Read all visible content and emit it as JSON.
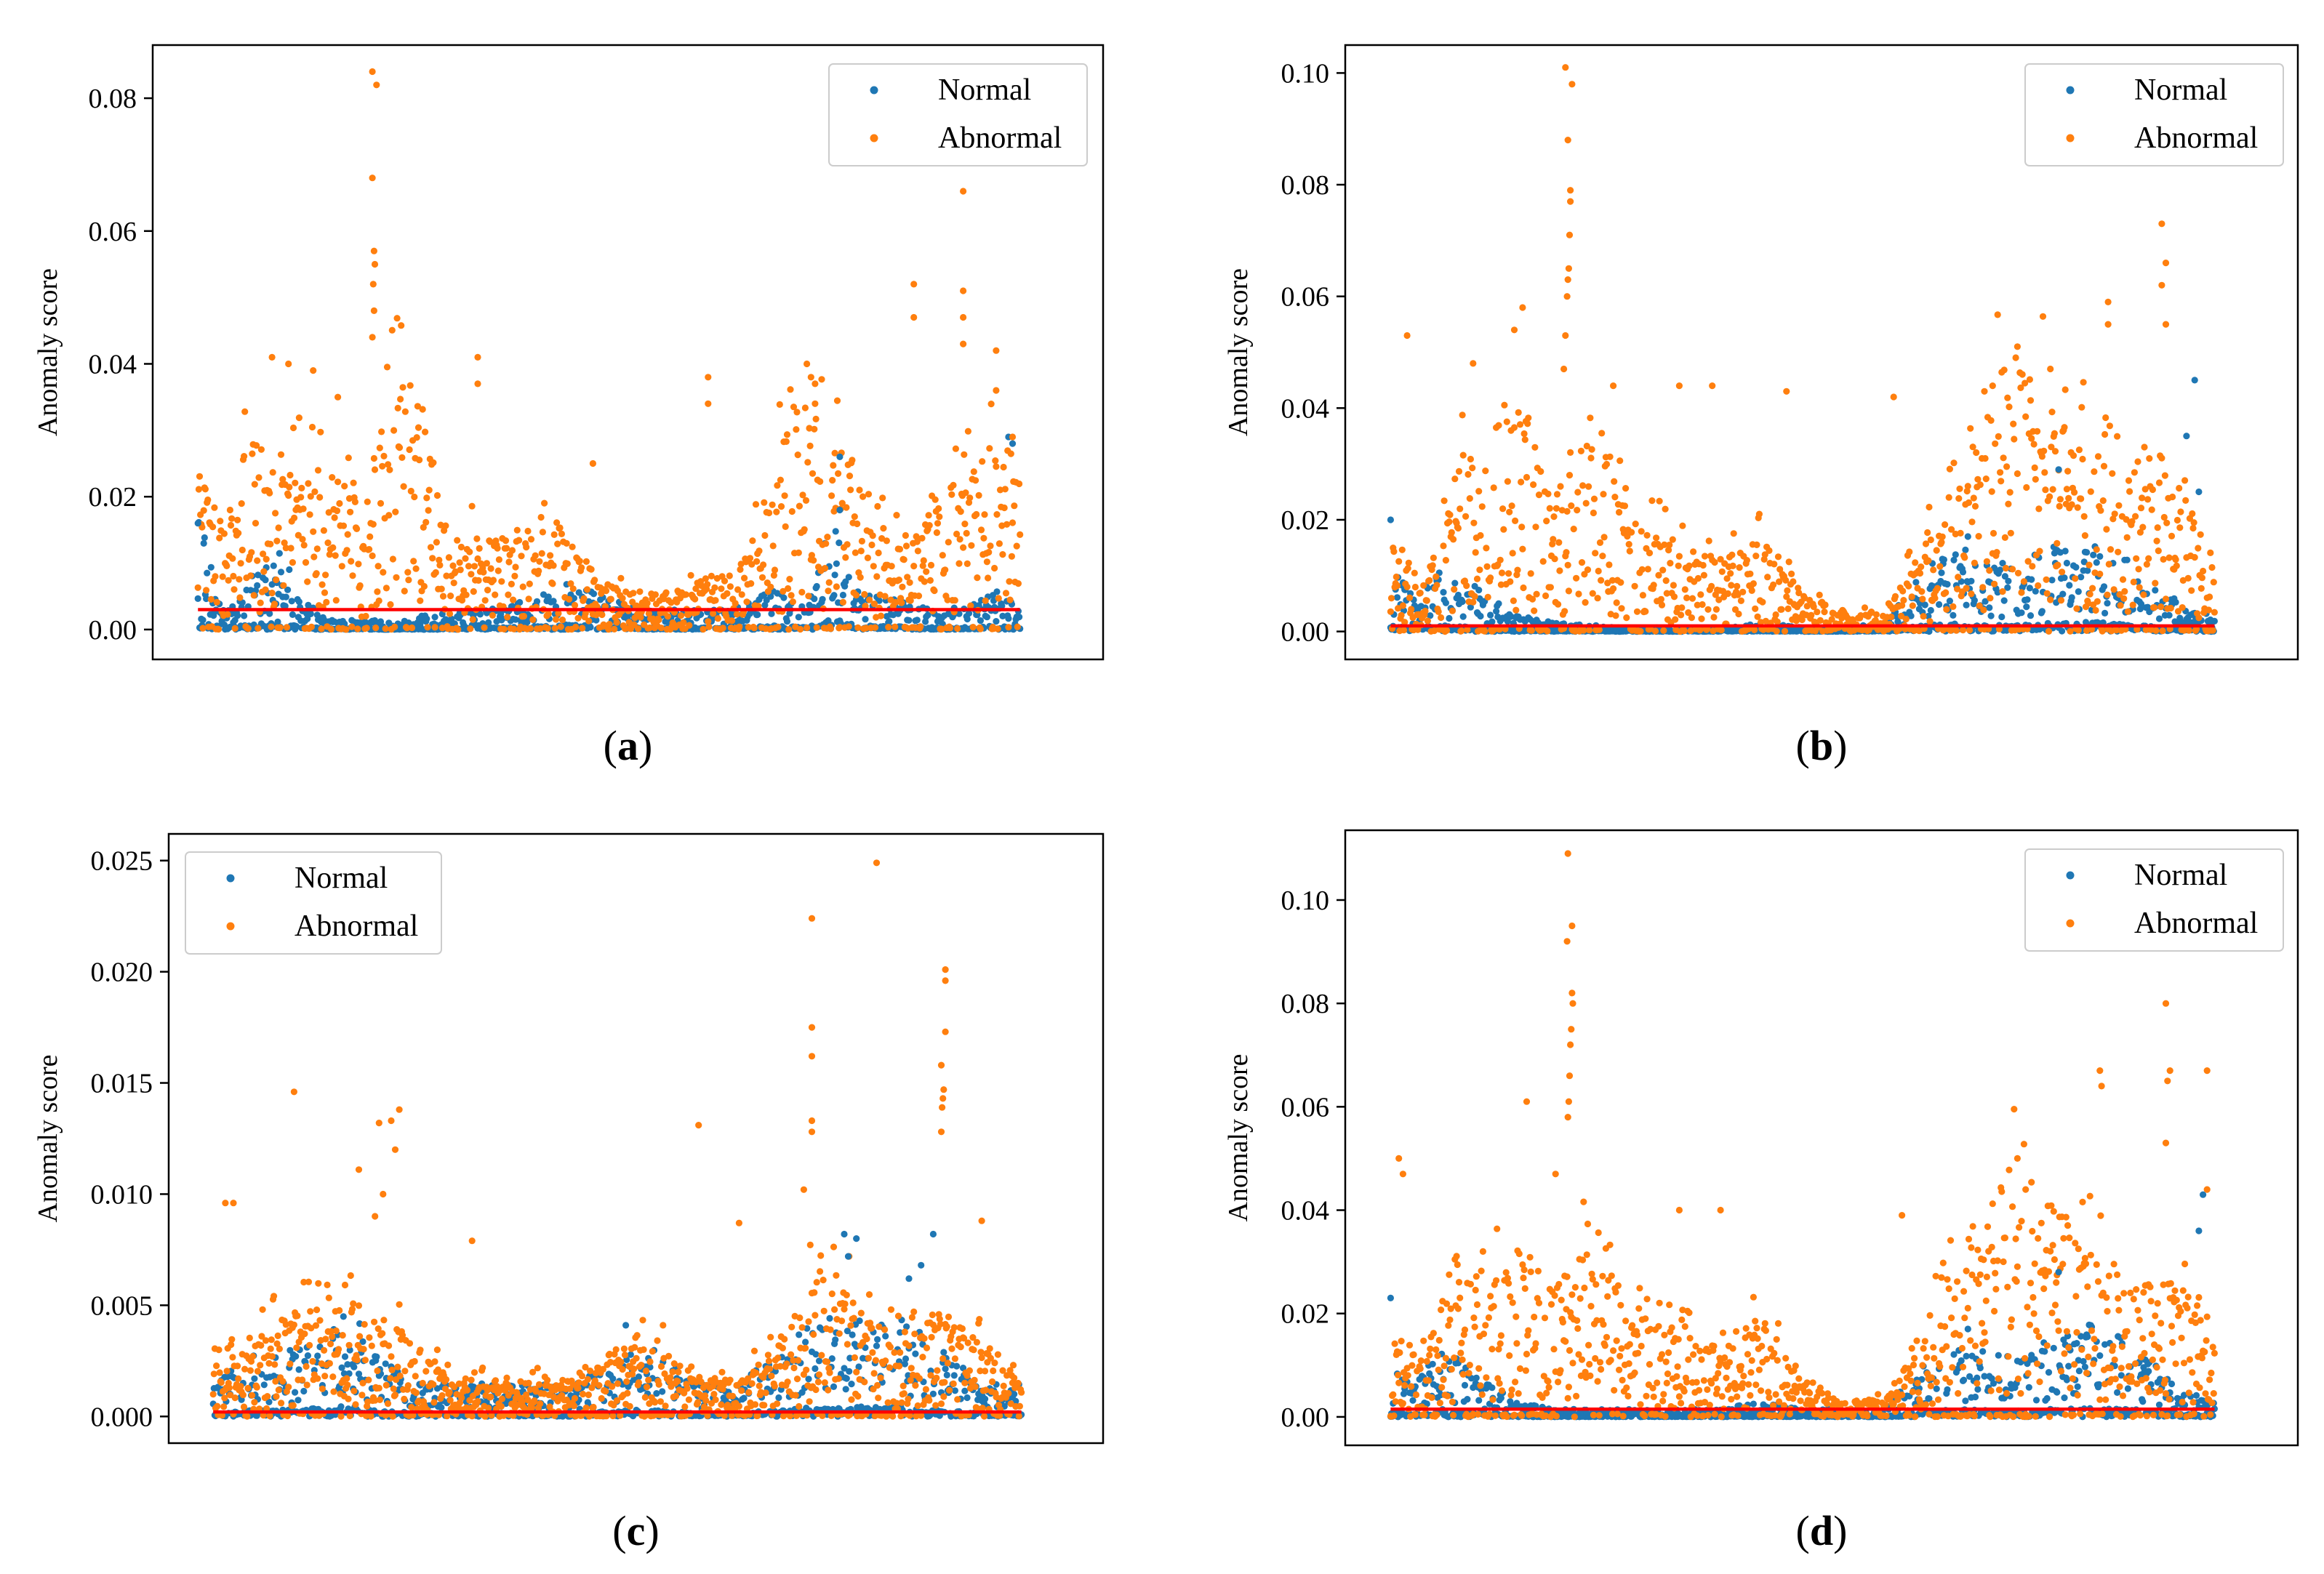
{
  "colors": {
    "normal": "#1f77b4",
    "abnormal": "#ff7f0e",
    "threshold": "#ff0000",
    "axis": "#000000",
    "legend_border": "#cccccc"
  },
  "chart_data": [
    {
      "id": "a",
      "type": "scatter",
      "panel_label": "(a)",
      "letter": "a",
      "title": "",
      "xlabel": "",
      "ylabel": "Anomaly score",
      "ylim": [
        -0.0045,
        0.088
      ],
      "xlim": [
        -55,
        1100
      ],
      "n_points": 1000,
      "tick_values": [
        0.0,
        0.02,
        0.04,
        0.06,
        0.08
      ],
      "tick_labels": [
        "0.00",
        "0.02",
        "0.04",
        "0.06",
        "0.08"
      ],
      "legend": {
        "placement": "top-right",
        "entries": [
          "Normal",
          "Abnormal"
        ]
      },
      "threshold": 0.003,
      "normal_profile": {
        "x": [
          0,
          30,
          60,
          100,
          130,
          160,
          200,
          250,
          300,
          350,
          400,
          450,
          500,
          550,
          600,
          650,
          700,
          740,
          770,
          800,
          850,
          900,
          950,
          970,
          1000
        ],
        "y": [
          0.012,
          0.002,
          0.005,
          0.008,
          0.003,
          0.001,
          0.001,
          0.001,
          0.002,
          0.002,
          0.003,
          0.005,
          0.003,
          0.002,
          0.002,
          0.002,
          0.004,
          0.002,
          0.012,
          0.004,
          0.003,
          0.002,
          0.003,
          0.004,
          0.002
        ]
      },
      "abnormal_profile": {
        "x": [
          0,
          30,
          60,
          100,
          150,
          200,
          230,
          250,
          280,
          300,
          350,
          400,
          450,
          500,
          550,
          600,
          650,
          700,
          720,
          760,
          800,
          850,
          900,
          950,
          980,
          1000
        ],
        "y": [
          0.015,
          0.01,
          0.018,
          0.015,
          0.016,
          0.012,
          0.02,
          0.025,
          0.018,
          0.012,
          0.008,
          0.01,
          0.008,
          0.004,
          0.003,
          0.004,
          0.006,
          0.012,
          0.022,
          0.02,
          0.015,
          0.008,
          0.012,
          0.016,
          0.018,
          0.015
        ]
      },
      "abnormal_spikes": [
        {
          "x": 212,
          "y": 0.084
        },
        {
          "x": 217,
          "y": 0.082
        },
        {
          "x": 212,
          "y": 0.068
        },
        {
          "x": 214,
          "y": 0.057
        },
        {
          "x": 215,
          "y": 0.055
        },
        {
          "x": 213,
          "y": 0.052
        },
        {
          "x": 214,
          "y": 0.048
        },
        {
          "x": 212,
          "y": 0.044
        },
        {
          "x": 930,
          "y": 0.066
        },
        {
          "x": 930,
          "y": 0.051
        },
        {
          "x": 930,
          "y": 0.047
        },
        {
          "x": 930,
          "y": 0.043
        },
        {
          "x": 870,
          "y": 0.052
        },
        {
          "x": 870,
          "y": 0.047
        },
        {
          "x": 740,
          "y": 0.04
        },
        {
          "x": 745,
          "y": 0.038
        },
        {
          "x": 750,
          "y": 0.037
        },
        {
          "x": 970,
          "y": 0.042
        },
        {
          "x": 970,
          "y": 0.036
        },
        {
          "x": 340,
          "y": 0.041
        },
        {
          "x": 340,
          "y": 0.037
        },
        {
          "x": 620,
          "y": 0.038
        },
        {
          "x": 620,
          "y": 0.034
        },
        {
          "x": 90,
          "y": 0.041
        },
        {
          "x": 140,
          "y": 0.039
        },
        {
          "x": 110,
          "y": 0.04
        },
        {
          "x": 170,
          "y": 0.035
        },
        {
          "x": 990,
          "y": 0.029
        },
        {
          "x": 480,
          "y": 0.025
        }
      ],
      "normal_spikes": [
        {
          "x": 780,
          "y": 0.026
        },
        {
          "x": 985,
          "y": 0.029
        },
        {
          "x": 990,
          "y": 0.028
        },
        {
          "x": 0,
          "y": 0.016
        },
        {
          "x": 780,
          "y": 0.018
        }
      ]
    },
    {
      "id": "b",
      "type": "scatter",
      "panel_label": "(b)",
      "letter": "b",
      "title": "",
      "xlabel": "",
      "ylabel": "Anomaly score",
      "ylim": [
        -0.005,
        0.105
      ],
      "xlim": [
        -55,
        1100
      ],
      "n_points": 1000,
      "tick_values": [
        0.0,
        0.02,
        0.04,
        0.06,
        0.08,
        0.1
      ],
      "tick_labels": [
        "0.00",
        "0.02",
        "0.04",
        "0.06",
        "0.08",
        "0.10"
      ],
      "legend": {
        "placement": "top-right",
        "entries": [
          "Normal",
          "Abnormal"
        ]
      },
      "threshold": 0.001,
      "normal_profile": {
        "x": [
          0,
          30,
          60,
          100,
          150,
          200,
          300,
          400,
          450,
          500,
          550,
          600,
          650,
          700,
          750,
          800,
          850,
          900,
          950,
          1000
        ],
        "y": [
          0.008,
          0.004,
          0.008,
          0.006,
          0.002,
          0.001,
          0.0005,
          0.0005,
          0.001,
          0.0005,
          0.0005,
          0.001,
          0.008,
          0.01,
          0.008,
          0.01,
          0.012,
          0.008,
          0.004,
          0.002
        ]
      },
      "abnormal_profile": {
        "x": [
          0,
          40,
          80,
          120,
          160,
          200,
          230,
          260,
          300,
          350,
          400,
          450,
          500,
          550,
          600,
          650,
          700,
          750,
          800,
          850,
          900,
          950,
          1000
        ],
        "y": [
          0.01,
          0.005,
          0.02,
          0.018,
          0.025,
          0.015,
          0.02,
          0.022,
          0.012,
          0.01,
          0.008,
          0.01,
          0.004,
          0.002,
          0.002,
          0.01,
          0.02,
          0.03,
          0.025,
          0.02,
          0.015,
          0.018,
          0.008
        ]
      },
      "abnormal_spikes": [
        {
          "x": 212,
          "y": 0.101
        },
        {
          "x": 220,
          "y": 0.098
        },
        {
          "x": 215,
          "y": 0.088
        },
        {
          "x": 218,
          "y": 0.079
        },
        {
          "x": 218,
          "y": 0.077
        },
        {
          "x": 217,
          "y": 0.071
        },
        {
          "x": 216,
          "y": 0.065
        },
        {
          "x": 215,
          "y": 0.063
        },
        {
          "x": 214,
          "y": 0.06
        },
        {
          "x": 212,
          "y": 0.053
        },
        {
          "x": 210,
          "y": 0.047
        },
        {
          "x": 935,
          "y": 0.073
        },
        {
          "x": 940,
          "y": 0.066
        },
        {
          "x": 940,
          "y": 0.055
        },
        {
          "x": 935,
          "y": 0.062
        },
        {
          "x": 870,
          "y": 0.059
        },
        {
          "x": 870,
          "y": 0.055
        },
        {
          "x": 760,
          "y": 0.051
        },
        {
          "x": 800,
          "y": 0.047
        },
        {
          "x": 720,
          "y": 0.043
        },
        {
          "x": 730,
          "y": 0.044
        },
        {
          "x": 20,
          "y": 0.053
        },
        {
          "x": 160,
          "y": 0.058
        },
        {
          "x": 150,
          "y": 0.054
        },
        {
          "x": 100,
          "y": 0.048
        },
        {
          "x": 270,
          "y": 0.044
        },
        {
          "x": 350,
          "y": 0.044
        },
        {
          "x": 390,
          "y": 0.044
        },
        {
          "x": 480,
          "y": 0.043
        },
        {
          "x": 610,
          "y": 0.042
        }
      ],
      "normal_spikes": [
        {
          "x": 975,
          "y": 0.045
        },
        {
          "x": 965,
          "y": 0.035
        },
        {
          "x": 980,
          "y": 0.025
        },
        {
          "x": 0,
          "y": 0.02
        },
        {
          "x": 810,
          "y": 0.029
        },
        {
          "x": 700,
          "y": 0.017
        }
      ]
    },
    {
      "id": "c",
      "type": "scatter",
      "panel_label": "(c)",
      "letter": "c",
      "title": "",
      "xlabel": "",
      "ylabel": "Anomaly score",
      "ylim": [
        -0.0012,
        0.0262
      ],
      "xlim": [
        -55,
        1100
      ],
      "n_points": 1000,
      "tick_values": [
        0.0,
        0.005,
        0.01,
        0.015,
        0.02,
        0.025
      ],
      "tick_labels": [
        "0.000",
        "0.005",
        "0.010",
        "0.015",
        "0.020",
        "0.025"
      ],
      "legend": {
        "placement": "top-left",
        "entries": [
          "Normal",
          "Abnormal"
        ]
      },
      "threshold": 0.0002,
      "normal_profile": {
        "x": [
          0,
          50,
          100,
          150,
          180,
          200,
          250,
          300,
          350,
          400,
          450,
          500,
          550,
          600,
          650,
          700,
          750,
          800,
          850,
          900,
          950,
          1000
        ],
        "y": [
          0.001,
          0.002,
          0.002,
          0.003,
          0.003,
          0.002,
          0.001,
          0.001,
          0.001,
          0.001,
          0.001,
          0.002,
          0.002,
          0.001,
          0.001,
          0.002,
          0.003,
          0.003,
          0.003,
          0.002,
          0.001,
          0.001
        ]
      },
      "abnormal_profile": {
        "x": [
          0,
          50,
          100,
          150,
          200,
          250,
          300,
          350,
          400,
          450,
          500,
          550,
          600,
          650,
          700,
          750,
          800,
          850,
          900,
          950,
          1000
        ],
        "y": [
          0.002,
          0.002,
          0.003,
          0.003,
          0.003,
          0.002,
          0.001,
          0.001,
          0.001,
          0.001,
          0.002,
          0.002,
          0.001,
          0.001,
          0.002,
          0.004,
          0.003,
          0.002,
          0.003,
          0.002,
          0.001
        ]
      },
      "abnormal_spikes": [
        {
          "x": 820,
          "y": 0.0249
        },
        {
          "x": 740,
          "y": 0.0224
        },
        {
          "x": 905,
          "y": 0.0201
        },
        {
          "x": 905,
          "y": 0.0196
        },
        {
          "x": 905,
          "y": 0.0173
        },
        {
          "x": 740,
          "y": 0.0175
        },
        {
          "x": 740,
          "y": 0.0162
        },
        {
          "x": 900,
          "y": 0.0158
        },
        {
          "x": 903,
          "y": 0.0147
        },
        {
          "x": 902,
          "y": 0.0143
        },
        {
          "x": 901,
          "y": 0.0139
        },
        {
          "x": 900,
          "y": 0.0128
        },
        {
          "x": 100,
          "y": 0.0146
        },
        {
          "x": 230,
          "y": 0.0138
        },
        {
          "x": 220,
          "y": 0.0133
        },
        {
          "x": 205,
          "y": 0.0132
        },
        {
          "x": 600,
          "y": 0.0131
        },
        {
          "x": 740,
          "y": 0.0133
        },
        {
          "x": 740,
          "y": 0.0128
        },
        {
          "x": 180,
          "y": 0.0111
        },
        {
          "x": 225,
          "y": 0.012
        },
        {
          "x": 15,
          "y": 0.0096
        },
        {
          "x": 25,
          "y": 0.0096
        },
        {
          "x": 730,
          "y": 0.0102
        },
        {
          "x": 210,
          "y": 0.01
        },
        {
          "x": 320,
          "y": 0.0079
        },
        {
          "x": 650,
          "y": 0.0087
        },
        {
          "x": 950,
          "y": 0.0088
        },
        {
          "x": 200,
          "y": 0.009
        }
      ],
      "normal_spikes": [
        {
          "x": 780,
          "y": 0.0082
        },
        {
          "x": 795,
          "y": 0.008
        },
        {
          "x": 890,
          "y": 0.0082
        },
        {
          "x": 875,
          "y": 0.0068
        },
        {
          "x": 860,
          "y": 0.0062
        },
        {
          "x": 785,
          "y": 0.0072
        },
        {
          "x": 510,
          "y": 0.0041
        }
      ]
    },
    {
      "id": "d",
      "type": "scatter",
      "panel_label": "(d)",
      "letter": "d",
      "title": "",
      "xlabel": "",
      "ylabel": "Anomaly score",
      "ylim": [
        -0.0055,
        0.1135
      ],
      "xlim": [
        -55,
        1100
      ],
      "n_points": 1000,
      "tick_values": [
        0.0,
        0.02,
        0.04,
        0.06,
        0.08,
        0.1
      ],
      "tick_labels": [
        "0.00",
        "0.02",
        "0.04",
        "0.06",
        "0.08",
        "0.10"
      ],
      "legend": {
        "placement": "top-right",
        "entries": [
          "Normal",
          "Abnormal"
        ]
      },
      "threshold": 0.0015,
      "normal_profile": {
        "x": [
          0,
          30,
          60,
          100,
          150,
          200,
          300,
          400,
          450,
          500,
          550,
          600,
          650,
          700,
          750,
          800,
          850,
          900,
          950,
          1000
        ],
        "y": [
          0.008,
          0.004,
          0.01,
          0.006,
          0.002,
          0.001,
          0.001,
          0.001,
          0.002,
          0.001,
          0.001,
          0.001,
          0.008,
          0.01,
          0.008,
          0.01,
          0.012,
          0.01,
          0.004,
          0.002
        ]
      },
      "abnormal_profile": {
        "x": [
          0,
          40,
          80,
          120,
          160,
          200,
          230,
          260,
          300,
          350,
          400,
          450,
          500,
          550,
          600,
          650,
          700,
          750,
          800,
          850,
          900,
          950,
          1000
        ],
        "y": [
          0.01,
          0.008,
          0.02,
          0.018,
          0.02,
          0.015,
          0.02,
          0.018,
          0.012,
          0.01,
          0.008,
          0.012,
          0.004,
          0.002,
          0.002,
          0.01,
          0.022,
          0.03,
          0.025,
          0.02,
          0.015,
          0.018,
          0.008
        ]
      },
      "abnormal_spikes": [
        {
          "x": 215,
          "y": 0.109
        },
        {
          "x": 220,
          "y": 0.095
        },
        {
          "x": 214,
          "y": 0.092
        },
        {
          "x": 220,
          "y": 0.082
        },
        {
          "x": 221,
          "y": 0.08
        },
        {
          "x": 219,
          "y": 0.075
        },
        {
          "x": 218,
          "y": 0.072
        },
        {
          "x": 217,
          "y": 0.066
        },
        {
          "x": 216,
          "y": 0.061
        },
        {
          "x": 215,
          "y": 0.058
        },
        {
          "x": 165,
          "y": 0.061
        },
        {
          "x": 940,
          "y": 0.08
        },
        {
          "x": 945,
          "y": 0.067
        },
        {
          "x": 942,
          "y": 0.065
        },
        {
          "x": 860,
          "y": 0.067
        },
        {
          "x": 862,
          "y": 0.064
        },
        {
          "x": 990,
          "y": 0.067
        },
        {
          "x": 940,
          "y": 0.053
        },
        {
          "x": 10,
          "y": 0.05
        },
        {
          "x": 15,
          "y": 0.047
        },
        {
          "x": 200,
          "y": 0.047
        },
        {
          "x": 760,
          "y": 0.05
        },
        {
          "x": 770,
          "y": 0.044
        },
        {
          "x": 620,
          "y": 0.039
        },
        {
          "x": 400,
          "y": 0.04
        },
        {
          "x": 350,
          "y": 0.04
        },
        {
          "x": 990,
          "y": 0.044
        }
      ],
      "normal_spikes": [
        {
          "x": 985,
          "y": 0.043
        },
        {
          "x": 980,
          "y": 0.036
        },
        {
          "x": 0,
          "y": 0.023
        },
        {
          "x": 810,
          "y": 0.028
        },
        {
          "x": 700,
          "y": 0.017
        }
      ]
    }
  ]
}
